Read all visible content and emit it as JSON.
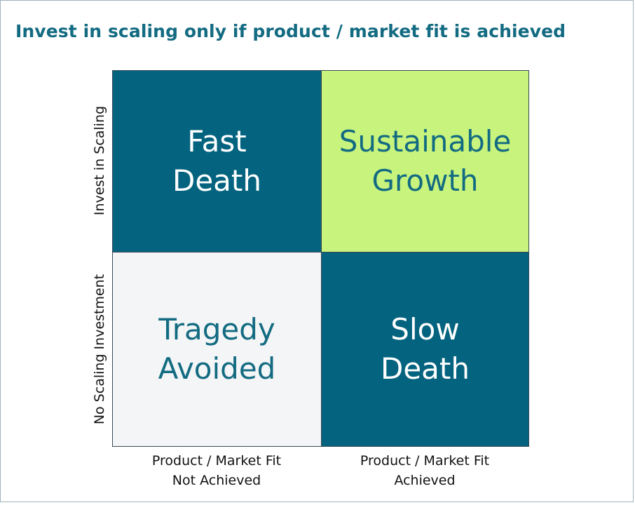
{
  "title": "Invest in scaling only if product / market fit is achieved",
  "matrix": {
    "quadrants": [
      {
        "position": "top-left",
        "label": "Fast\nDeath",
        "fill": "#04637f",
        "text_color": "#ffffff"
      },
      {
        "position": "top-right",
        "label": "Sustainable\nGrowth",
        "fill": "#c8f47d",
        "text_color": "#136b82"
      },
      {
        "position": "bottom-left",
        "label": "Tragedy\nAvoided",
        "fill": "#f3f5f6",
        "text_color": "#136b82"
      },
      {
        "position": "bottom-right",
        "label": "Slow\nDeath",
        "fill": "#04637f",
        "text_color": "#ffffff"
      }
    ]
  },
  "y_axis": {
    "top_label": "Invest in Scaling",
    "bottom_label": "No Scaling Investment"
  },
  "x_axis": {
    "left_label_line1": "Product / Market Fit",
    "left_label_line2": "Not Achieved",
    "right_label_line1": "Product / Market Fit",
    "right_label_line2": "Achieved"
  },
  "colors": {
    "title": "#136b82",
    "dark_quadrant": "#04637f",
    "green_quadrant": "#c8f47d",
    "light_quadrant": "#f3f5f6"
  }
}
